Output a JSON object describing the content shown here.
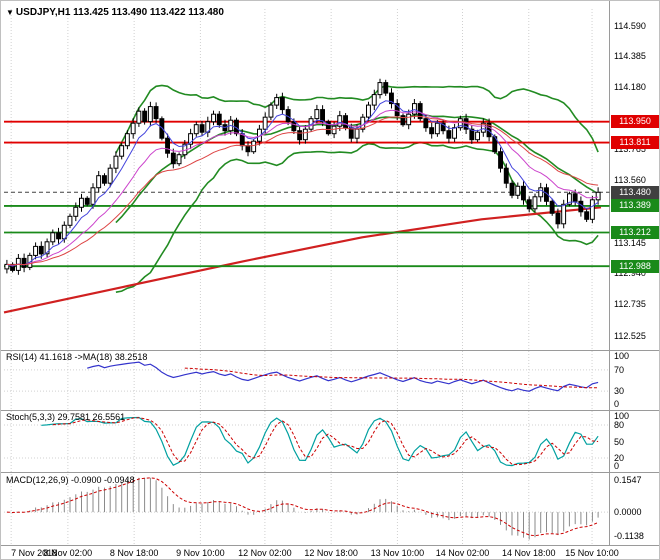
{
  "header": {
    "title": "USDJPY,H1 113.425 113.490 113.422 113.480",
    "dropdown_icon": "▼"
  },
  "indicators": {
    "rsi_label": "RSI(14) 41.1618 ->MA(18) 38.2518",
    "stoch_label": "Stoch(5,3,3) 29.7581 26.5561",
    "macd_label": "MACD(12,26,9) -0.0900 -0.0948"
  },
  "colors": {
    "resistance": "#e00000",
    "support": "#1a8a1a",
    "current": "#404040",
    "bollinger": "#228B22",
    "ma_slow": "#d02020",
    "ema_fast": "#4444dd",
    "ema_mid": "#cc44cc",
    "ema_slow2": "#dd4444",
    "rsi": "#3333cc",
    "rsi_ma": "#cc0000",
    "stoch": "#00a0a0",
    "stoch_signal": "#cc0000",
    "macd_hist": "#8a8a8a",
    "macd_signal": "#cc0000",
    "grid": "#d0d0d0"
  },
  "chart_data": {
    "type": "candlestick",
    "symbol": "USDJPY",
    "timeframe": "H1",
    "current_ohlc": {
      "open": 113.425,
      "high": 113.49,
      "low": 113.422,
      "close": 113.48
    },
    "price_axis": {
      "min": 112.45,
      "max": 114.7,
      "ticks": [
        "114.590",
        "114.385",
        "114.180",
        "113.765",
        "113.560",
        "113.145",
        "112.940",
        "112.735",
        "112.525"
      ]
    },
    "price_lines": [
      {
        "price": 113.95,
        "label": "113.950",
        "kind": "resistance"
      },
      {
        "price": 113.811,
        "label": "113.811",
        "kind": "resistance"
      },
      {
        "price": 113.48,
        "label": "113.480",
        "kind": "current"
      },
      {
        "price": 113.389,
        "label": "113.389",
        "kind": "support"
      },
      {
        "price": 113.212,
        "label": "113.212",
        "kind": "support"
      },
      {
        "price": 112.988,
        "label": "112.988",
        "kind": "support"
      }
    ],
    "time_labels": [
      {
        "label": "7 Nov 2018",
        "pos": 0.012
      },
      {
        "label": "8 Nov 02:00",
        "pos": 0.107
      },
      {
        "label": "8 Nov 18:00",
        "pos": 0.218
      },
      {
        "label": "9 Nov 10:00",
        "pos": 0.329
      },
      {
        "label": "12 Nov 02:00",
        "pos": 0.437
      },
      {
        "label": "12 Nov 18:00",
        "pos": 0.548
      },
      {
        "label": "13 Nov 10:00",
        "pos": 0.659
      },
      {
        "label": "14 Nov 02:00",
        "pos": 0.768
      },
      {
        "label": "14 Nov 18:00",
        "pos": 0.879
      },
      {
        "label": "15 Nov 10:00",
        "pos": 0.985
      }
    ],
    "closes": [
      113.0,
      112.96,
      113.04,
      112.98,
      113.06,
      113.12,
      113.07,
      113.15,
      113.21,
      113.17,
      113.26,
      113.32,
      113.38,
      113.44,
      113.4,
      113.51,
      113.59,
      113.54,
      113.64,
      113.72,
      113.79,
      113.87,
      113.94,
      114.02,
      113.95,
      114.05,
      113.97,
      113.84,
      113.74,
      113.67,
      113.73,
      113.8,
      113.87,
      113.93,
      113.88,
      113.95,
      114.0,
      113.93,
      113.89,
      113.96,
      113.87,
      113.79,
      113.75,
      113.82,
      113.9,
      113.98,
      114.06,
      114.11,
      114.03,
      113.95,
      113.89,
      113.83,
      113.9,
      113.97,
      114.03,
      113.95,
      113.87,
      113.92,
      113.99,
      113.91,
      113.84,
      113.9,
      113.98,
      114.06,
      114.13,
      114.21,
      114.14,
      114.07,
      113.99,
      113.93,
      114.0,
      114.07,
      113.97,
      113.91,
      113.87,
      113.94,
      113.89,
      113.84,
      113.91,
      113.97,
      113.9,
      113.83,
      113.88,
      113.94,
      113.85,
      113.75,
      113.64,
      113.54,
      113.46,
      113.52,
      113.43,
      113.37,
      113.45,
      113.51,
      113.42,
      113.34,
      113.27,
      113.4,
      113.47,
      113.42,
      113.35,
      113.3,
      113.43,
      113.48
    ],
    "ma_slow_red": [
      [
        0,
        112.68
      ],
      [
        0.2,
        112.85
      ],
      [
        0.4,
        113.02
      ],
      [
        0.6,
        113.18
      ],
      [
        0.8,
        113.3
      ],
      [
        1,
        113.38
      ]
    ],
    "rsi_axis": {
      "ticks": [
        "100",
        "70",
        "30",
        "0"
      ],
      "levels": [
        70,
        30
      ],
      "current": 41.1618,
      "ma_current": 38.2518
    },
    "stoch_axis": {
      "ticks": [
        "100",
        "80",
        "50",
        "20",
        "0"
      ],
      "levels": [
        80,
        20
      ],
      "current": 29.7581,
      "signal_current": 26.5561
    },
    "macd_axis": {
      "min": -0.15,
      "max": 0.17,
      "ticks": [
        {
          "label": "0.1547",
          "value": 0.1547
        },
        {
          "label": "0.0000",
          "value": 0.0
        },
        {
          "label": "-0.1138",
          "value": -0.1138
        }
      ],
      "current": -0.09,
      "signal_current": -0.0948
    }
  }
}
